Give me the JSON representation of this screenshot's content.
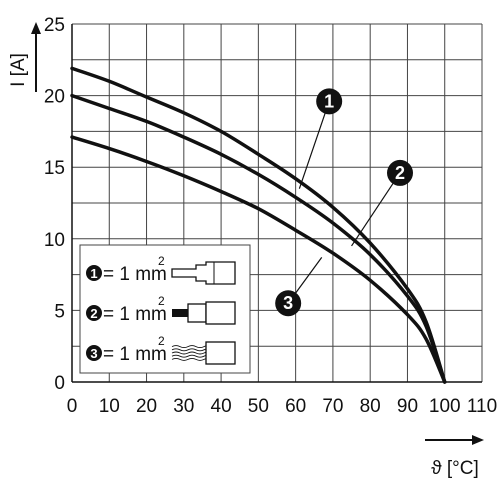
{
  "chart_data": {
    "type": "line",
    "title": "",
    "xlabel": "ϑ [°C]",
    "ylabel": "I [A]",
    "xlim": [
      0,
      110
    ],
    "ylim": [
      0,
      25
    ],
    "x_ticks": [
      "0",
      "10",
      "20",
      "30",
      "40",
      "50",
      "60",
      "70",
      "80",
      "90",
      "100",
      "110"
    ],
    "y_ticks": [
      "0",
      "5",
      "10",
      "15",
      "20",
      "25"
    ],
    "grid": true,
    "legend": "bottom-left",
    "series": [
      {
        "name": "1",
        "color": "#111111",
        "x": [
          0,
          10,
          20,
          30,
          40,
          50,
          60,
          70,
          80,
          90,
          95,
          100
        ],
        "y": [
          21.9,
          21.0,
          19.9,
          18.8,
          17.5,
          15.9,
          14.2,
          12.2,
          9.7,
          6.5,
          4.2,
          0
        ]
      },
      {
        "name": "2",
        "color": "#111111",
        "x": [
          0,
          10,
          20,
          30,
          40,
          50,
          60,
          70,
          80,
          90,
          95,
          100
        ],
        "y": [
          20.0,
          19.1,
          18.2,
          17.1,
          15.9,
          14.5,
          12.9,
          11.1,
          8.9,
          6.0,
          3.9,
          0
        ]
      },
      {
        "name": "3",
        "color": "#111111",
        "x": [
          0,
          10,
          20,
          30,
          40,
          50,
          60,
          70,
          80,
          90,
          95,
          100
        ],
        "y": [
          17.1,
          16.3,
          15.4,
          14.4,
          13.3,
          12.1,
          10.6,
          9.0,
          7.1,
          4.7,
          3.0,
          0
        ]
      }
    ],
    "markers": [
      {
        "label": "1",
        "x": 69,
        "y": 19.6,
        "pointer": [
          61,
          13.5
        ]
      },
      {
        "label": "2",
        "x": 88,
        "y": 14.6,
        "pointer": [
          75,
          9.5
        ]
      },
      {
        "label": "3",
        "x": 58,
        "y": 5.5,
        "pointer": [
          67,
          8.7
        ]
      }
    ],
    "legend_items": [
      {
        "num": "1",
        "text": "= 1 mm",
        "sup": "2",
        "icon": "ferrule-icon"
      },
      {
        "num": "2",
        "text": "= 1 mm",
        "sup": "2",
        "icon": "insulated-ferrule-icon"
      },
      {
        "num": "3",
        "text": "= 1 mm",
        "sup": "2",
        "icon": "stranded-wire-icon"
      }
    ]
  }
}
